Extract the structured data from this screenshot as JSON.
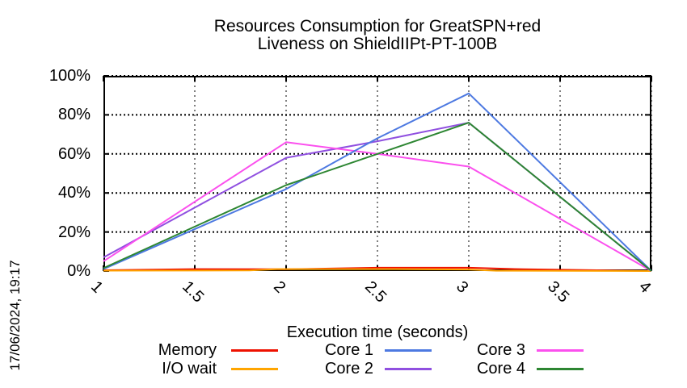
{
  "timestamp": "17/06/2024, 19:17",
  "chart_data": {
    "type": "line",
    "title": "Resources Consumption for GreatSPN+red",
    "subtitle": "Liveness on ShieldIIPt-PT-100B",
    "xlabel": "Execution time (seconds)",
    "ylabel": "",
    "xlim": [
      1,
      4
    ],
    "ylim": [
      0,
      100
    ],
    "grid": true,
    "legend_position": "bottom",
    "xtick_labels": [
      "1",
      "1.5",
      "2",
      "2.5",
      "3",
      "3.5",
      "4"
    ],
    "xtick_values": [
      1,
      1.5,
      2,
      2.5,
      3,
      3.5,
      4
    ],
    "ytick_labels": [
      "0%",
      "20%",
      "40%",
      "60%",
      "80%",
      "100%"
    ],
    "ytick_values": [
      0,
      20,
      40,
      60,
      80,
      100
    ],
    "series": [
      {
        "name": "Memory",
        "color": "#ee1100",
        "points": [
          [
            1,
            0.4
          ],
          [
            1.5,
            1
          ],
          [
            2,
            0.9
          ],
          [
            2.5,
            1.7
          ],
          [
            3,
            1.7
          ],
          [
            3.3,
            0.9
          ],
          [
            3.7,
            0.4
          ],
          [
            4,
            0
          ]
        ]
      },
      {
        "name": "I/O wait",
        "color": "#ffa500",
        "points": [
          [
            1,
            0.2
          ],
          [
            1.8,
            0.3
          ],
          [
            1.95,
            1
          ],
          [
            2.6,
            1
          ],
          [
            3.0,
            0.8
          ],
          [
            3.15,
            0.15
          ],
          [
            4,
            0
          ]
        ]
      },
      {
        "name": "Core 1",
        "color": "#4d79e1",
        "points": [
          [
            1,
            1
          ],
          [
            2,
            42
          ],
          [
            2.5,
            68
          ],
          [
            3,
            91
          ],
          [
            4,
            0
          ]
        ]
      },
      {
        "name": "Core 2",
        "color": "#9050e0",
        "points": [
          [
            1,
            7
          ],
          [
            2,
            58
          ],
          [
            2.5,
            66.5
          ],
          [
            3,
            76
          ],
          [
            4,
            0
          ]
        ]
      },
      {
        "name": "Core 3",
        "color": "#fb50ee",
        "points": [
          [
            1,
            5
          ],
          [
            2,
            66
          ],
          [
            2.5,
            60
          ],
          [
            3,
            53.5
          ],
          [
            4,
            0
          ]
        ]
      },
      {
        "name": "Core 4",
        "color": "#2d8632",
        "points": [
          [
            1,
            1.5
          ],
          [
            2,
            44
          ],
          [
            2.5,
            60
          ],
          [
            3,
            76
          ],
          [
            4,
            0
          ]
        ]
      }
    ]
  }
}
